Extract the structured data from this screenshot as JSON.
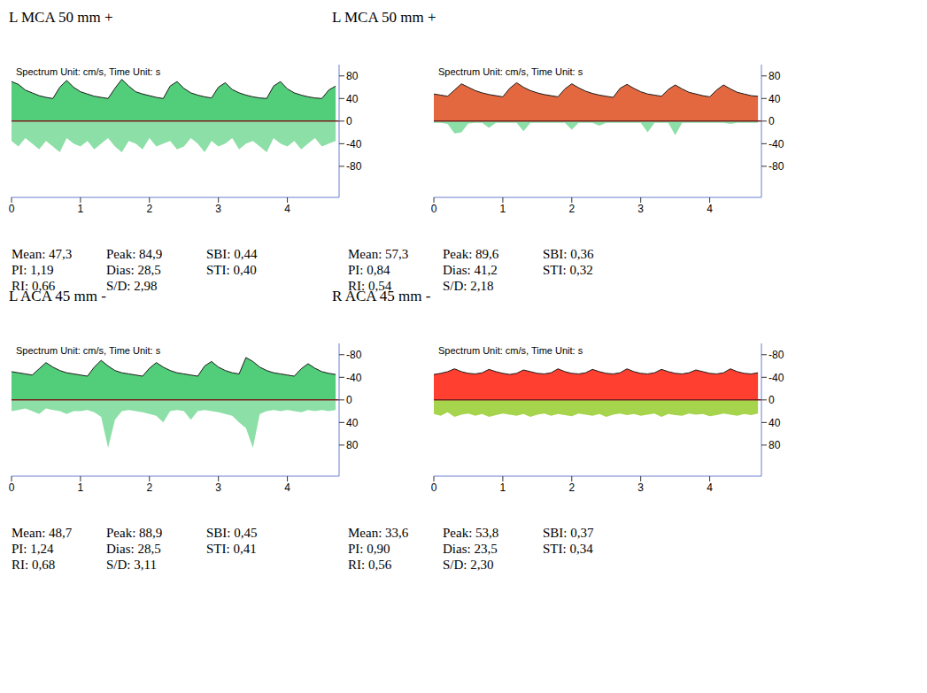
{
  "chart_data": [
    {
      "type": "area",
      "title": "L MCA 50 mm +",
      "subtitle": "Spectrum Unit: cm/s, Time Unit: s",
      "x": [
        0,
        0.1,
        0.2,
        0.3,
        0.4,
        0.5,
        0.6,
        0.7,
        0.8,
        0.9,
        1,
        1.1,
        1.2,
        1.3,
        1.4,
        1.5,
        1.6,
        1.7,
        1.8,
        1.9,
        2,
        2.1,
        2.2,
        2.3,
        2.4,
        2.5,
        2.6,
        2.7,
        2.8,
        2.9,
        3,
        3.1,
        3.2,
        3.3,
        3.4,
        3.5,
        3.6,
        3.7,
        3.8,
        3.9,
        4,
        4.1,
        4.2,
        4.3,
        4.4,
        4.5,
        4.6,
        4.7
      ],
      "series": [
        {
          "color": "#3fc86a",
          "values": [
            70,
            65,
            55,
            50,
            45,
            42,
            40,
            60,
            72,
            60,
            52,
            48,
            44,
            42,
            40,
            58,
            74,
            62,
            52,
            48,
            45,
            42,
            40,
            62,
            70,
            58,
            50,
            46,
            43,
            41,
            60,
            68,
            56,
            50,
            46,
            43,
            41,
            40,
            62,
            70,
            57,
            50,
            46,
            43,
            41,
            40,
            55,
            62
          ]
        },
        {
          "color": "#7fdc9c",
          "values": [
            -35,
            -45,
            -30,
            -40,
            -50,
            -35,
            -45,
            -55,
            -30,
            -40,
            -45,
            -35,
            -50,
            -40,
            -30,
            -45,
            -55,
            -35,
            -40,
            -50,
            -30,
            -45,
            -40,
            -35,
            -50,
            -45,
            -30,
            -40,
            -55,
            -35,
            -45,
            -40,
            -30,
            -50,
            -40,
            -35,
            -45,
            -55,
            -30,
            -40,
            -45,
            -35,
            -50,
            -40,
            -30,
            -45,
            -40,
            -35
          ]
        }
      ],
      "xlim": [
        0,
        4.75
      ],
      "ylim": [
        -135,
        100
      ],
      "xticks": [
        0,
        1,
        2,
        3,
        4
      ],
      "yticks": [
        80,
        40,
        0,
        -40,
        -80
      ],
      "annotations": [
        [
          "Mean: 47,3",
          "PI: 1,19",
          "RI: 0,66"
        ],
        [
          "Peak: 84,9",
          "Dias: 28,5",
          "S/D: 2,98"
        ],
        [
          "SBI: 0,44",
          "STI: 0,40"
        ]
      ]
    },
    {
      "type": "area",
      "title": "L MCA 50 mm +",
      "subtitle": "Spectrum Unit: cm/s, Time Unit: s",
      "x": [
        0,
        0.1,
        0.2,
        0.3,
        0.4,
        0.5,
        0.6,
        0.7,
        0.8,
        0.9,
        1,
        1.1,
        1.2,
        1.3,
        1.4,
        1.5,
        1.6,
        1.7,
        1.8,
        1.9,
        2,
        2.1,
        2.2,
        2.3,
        2.4,
        2.5,
        2.6,
        2.7,
        2.8,
        2.9,
        3,
        3.1,
        3.2,
        3.3,
        3.4,
        3.5,
        3.6,
        3.7,
        3.8,
        3.9,
        4,
        4.1,
        4.2,
        4.3,
        4.4,
        4.5,
        4.6,
        4.7
      ],
      "series": [
        {
          "color": "#e0582a",
          "values": [
            48,
            46,
            44,
            55,
            66,
            60,
            54,
            50,
            47,
            45,
            43,
            58,
            68,
            60,
            54,
            50,
            47,
            45,
            43,
            57,
            66,
            59,
            53,
            49,
            46,
            44,
            42,
            58,
            65,
            58,
            52,
            48,
            46,
            44,
            56,
            64,
            57,
            51,
            48,
            45,
            43,
            55,
            64,
            57,
            51,
            48,
            45,
            44
          ]
        },
        {
          "color": "#7fdc9c",
          "values": [
            -3,
            -3,
            -5,
            -22,
            -20,
            -4,
            -3,
            -3,
            -12,
            -3,
            -3,
            -3,
            -3,
            -18,
            -3,
            -3,
            -3,
            -3,
            -3,
            -3,
            -15,
            -3,
            -3,
            -3,
            -8,
            -3,
            -3,
            -3,
            -3,
            -3,
            -3,
            -20,
            -3,
            -3,
            -3,
            -25,
            -3,
            -3,
            -3,
            -3,
            -3,
            -3,
            -3,
            -5,
            -3,
            -3,
            -3,
            -3
          ]
        }
      ],
      "xlim": [
        0,
        4.75
      ],
      "ylim": [
        -135,
        100
      ],
      "xticks": [
        0,
        1,
        2,
        3,
        4
      ],
      "yticks": [
        80,
        40,
        0,
        -40,
        -80
      ],
      "annotations": [
        [
          "Mean: 57,3",
          "PI: 0,84",
          "RI: 0,54"
        ],
        [
          "Peak: 89,6",
          "Dias: 41,2",
          "S/D: 2,18"
        ],
        [
          "SBI: 0,36",
          "STI: 0,32"
        ]
      ]
    },
    {
      "type": "area",
      "title": "L ACA 45 mm -",
      "subtitle": "Spectrum Unit: cm/s, Time Unit: s",
      "x": [
        0,
        0.1,
        0.2,
        0.3,
        0.4,
        0.5,
        0.6,
        0.7,
        0.8,
        0.9,
        1,
        1.1,
        1.2,
        1.3,
        1.4,
        1.5,
        1.6,
        1.7,
        1.8,
        1.9,
        2,
        2.1,
        2.2,
        2.3,
        2.4,
        2.5,
        2.6,
        2.7,
        2.8,
        2.9,
        3,
        3.1,
        3.2,
        3.3,
        3.4,
        3.5,
        3.6,
        3.7,
        3.8,
        3.9,
        4,
        4.1,
        4.2,
        4.3,
        4.4,
        4.5,
        4.6,
        4.7
      ],
      "series": [
        {
          "color": "#3fc86a",
          "values": [
            -50,
            -48,
            -46,
            -44,
            -55,
            -66,
            -58,
            -52,
            -48,
            -46,
            -44,
            -42,
            -58,
            -70,
            -60,
            -52,
            -48,
            -46,
            -44,
            -42,
            -56,
            -66,
            -58,
            -52,
            -48,
            -46,
            -44,
            -42,
            -60,
            -68,
            -58,
            -52,
            -48,
            -46,
            -75,
            -68,
            -58,
            -52,
            -48,
            -46,
            -44,
            -42,
            -55,
            -64,
            -56,
            -50,
            -47,
            -45
          ]
        },
        {
          "color": "#7fdc9c",
          "values": [
            20,
            18,
            15,
            20,
            25,
            15,
            18,
            20,
            25,
            20,
            20,
            18,
            22,
            30,
            85,
            35,
            20,
            18,
            20,
            22,
            25,
            28,
            40,
            20,
            18,
            20,
            35,
            20,
            18,
            20,
            22,
            25,
            28,
            40,
            50,
            85,
            25,
            20,
            18,
            20,
            18,
            20,
            22,
            18,
            20,
            18,
            20,
            18
          ]
        }
      ],
      "xlim": [
        0,
        4.75
      ],
      "ylim": [
        135,
        -100
      ],
      "xticks": [
        0,
        1,
        2,
        3,
        4
      ],
      "yticks": [
        80,
        40,
        0,
        -40,
        -80
      ],
      "annotations": [
        [
          "Mean: 48,7",
          "PI: 1,24",
          "RI: 0,68"
        ],
        [
          "Peak: 88,9",
          "Dias: 28,5",
          "S/D: 3,11"
        ],
        [
          "SBI: 0,45",
          "STI: 0,41"
        ]
      ]
    },
    {
      "type": "area",
      "title": "R ACA 45 mm -",
      "subtitle": "Spectrum Unit: cm/s, Time Unit: s",
      "x": [
        0,
        0.1,
        0.2,
        0.3,
        0.4,
        0.5,
        0.6,
        0.7,
        0.8,
        0.9,
        1,
        1.1,
        1.2,
        1.3,
        1.4,
        1.5,
        1.6,
        1.7,
        1.8,
        1.9,
        2,
        2.1,
        2.2,
        2.3,
        2.4,
        2.5,
        2.6,
        2.7,
        2.8,
        2.9,
        3,
        3.1,
        3.2,
        3.3,
        3.4,
        3.5,
        3.6,
        3.7,
        3.8,
        3.9,
        4,
        4.1,
        4.2,
        4.3,
        4.4,
        4.5,
        4.6,
        4.7
      ],
      "series": [
        {
          "color": "#ff2a1a",
          "values": [
            -45,
            -47,
            -50,
            -55,
            -50,
            -47,
            -46,
            -48,
            -54,
            -50,
            -47,
            -45,
            -47,
            -53,
            -50,
            -47,
            -46,
            -48,
            -55,
            -50,
            -47,
            -46,
            -48,
            -54,
            -50,
            -47,
            -46,
            -48,
            -55,
            -50,
            -47,
            -46,
            -48,
            -54,
            -50,
            -47,
            -46,
            -48,
            -53,
            -50,
            -47,
            -46,
            -48,
            -55,
            -50,
            -47,
            -46,
            -48
          ]
        },
        {
          "color": "#9ccf3a",
          "values": [
            25,
            28,
            22,
            30,
            26,
            24,
            28,
            25,
            30,
            27,
            24,
            26,
            28,
            25,
            30,
            26,
            24,
            28,
            25,
            27,
            29,
            24,
            26,
            28,
            25,
            30,
            26,
            24,
            27,
            25,
            28,
            26,
            24,
            30,
            25,
            27,
            28,
            24,
            26,
            25,
            29,
            27,
            24,
            26,
            28,
            25,
            27,
            24
          ]
        }
      ],
      "xlim": [
        0,
        4.75
      ],
      "ylim": [
        135,
        -100
      ],
      "xticks": [
        0,
        1,
        2,
        3,
        4
      ],
      "yticks": [
        80,
        40,
        0,
        -40,
        -80
      ],
      "annotations": [
        [
          "Mean: 33,6",
          "PI: 0,90",
          "RI: 0,56"
        ],
        [
          "Peak: 53,8",
          "Dias: 23,5",
          "S/D: 2,30"
        ],
        [
          "SBI: 0,37",
          "STI: 0,34"
        ]
      ]
    }
  ]
}
